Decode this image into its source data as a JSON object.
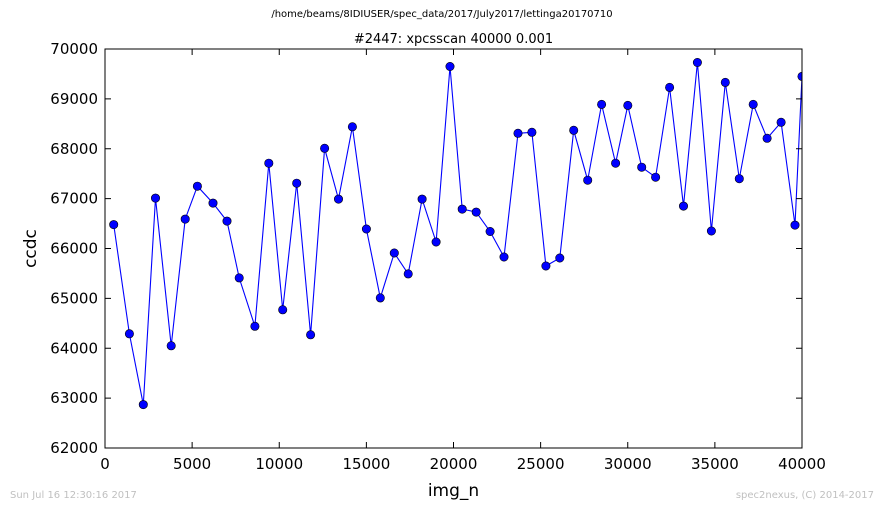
{
  "header": {
    "path": "/home/beams/8IDIUSER/spec_data/2017/July2017/lettinga20170710"
  },
  "footer": {
    "timestamp": "Sun Jul 16 12:30:16 2017",
    "credit": "spec2nexus, (C) 2014-2017"
  },
  "colors": {
    "series": "#0000ff",
    "marker_edge": "#000000",
    "footer_text": "#c0c0c0"
  },
  "chart_data": {
    "type": "line",
    "title": "#2447: xpcsscan 40000 0.001",
    "xlabel": "img_n",
    "ylabel": "ccdc",
    "xlim": [
      0,
      40000
    ],
    "ylim": [
      62000,
      70000
    ],
    "xticks": [
      "0",
      "5000",
      "10000",
      "15000",
      "20000",
      "25000",
      "30000",
      "35000",
      "40000"
    ],
    "yticks": [
      "62000",
      "63000",
      "64000",
      "65000",
      "66000",
      "67000",
      "68000",
      "69000",
      "70000"
    ],
    "grid": false,
    "x": [
      500,
      1400,
      2200,
      2900,
      3800,
      4600,
      5300,
      6200,
      7000,
      7700,
      8600,
      9400,
      10200,
      11000,
      11800,
      12600,
      13400,
      14200,
      15000,
      15800,
      16600,
      17400,
      18200,
      19000,
      19800,
      20500,
      21300,
      22100,
      22900,
      23700,
      24500,
      25300,
      26100,
      26900,
      27700,
      28500,
      29300,
      30000,
      30800,
      31600,
      32400,
      33200,
      34000,
      34800,
      35600,
      36400,
      37200,
      38000,
      38800,
      39600,
      40000
    ],
    "y": [
      66480,
      64290,
      62870,
      67010,
      64050,
      66590,
      67250,
      66910,
      66550,
      65410,
      64440,
      67710,
      64770,
      67310,
      64270,
      68010,
      66990,
      68440,
      66390,
      65010,
      65910,
      65490,
      66990,
      66130,
      69650,
      66790,
      66730,
      66340,
      65830,
      68310,
      68330,
      65650,
      65810,
      68370,
      67370,
      68890,
      67710,
      68870,
      67630,
      67430,
      69230,
      66850,
      69730,
      66350,
      69330,
      67400,
      68890,
      68210,
      68530,
      66470,
      69450
    ]
  }
}
